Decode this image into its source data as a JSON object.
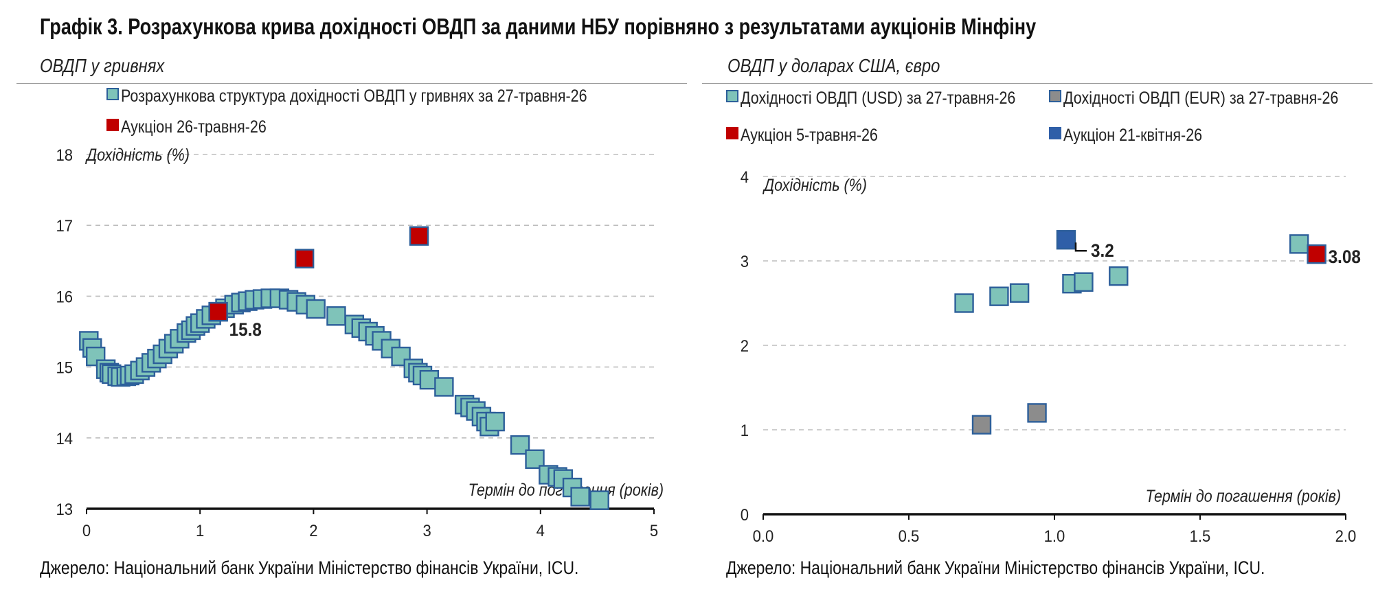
{
  "title": "Графік 3. Розрахункова крива дохідності ОВДП за даними НБУ порівняно з результатами аукціонів Мінфіну",
  "source_note": "Джерело: Національний банк України Міністерство фінансів України, ICU.",
  "colors": {
    "teal": "#7fc3b9",
    "red": "#c00000",
    "blue": "#2f5fa8",
    "gray": "#8c8c8c",
    "border": "#2d5f9a"
  },
  "chart_data": [
    {
      "type": "scatter",
      "subtitle": "ОВДП у гривнях",
      "ylabel": "Дохідність (%)",
      "xlabel": "Термін до погашення (років)",
      "xlim": [
        0,
        5
      ],
      "ylim": [
        13,
        18
      ],
      "xticks": [
        0,
        1,
        2,
        3,
        4,
        5
      ],
      "yticks": [
        13,
        14,
        15,
        16,
        17,
        18
      ],
      "grid": true,
      "legend_position": "top",
      "series": [
        {
          "name": "Розрахункова структура дохідності ОВДП у гривнях за 27-травня-26",
          "color": "teal",
          "points": [
            [
              0.02,
              15.37
            ],
            [
              0.05,
              15.27
            ],
            [
              0.08,
              15.15
            ],
            [
              0.17,
              14.97
            ],
            [
              0.2,
              14.92
            ],
            [
              0.22,
              14.9
            ],
            [
              0.27,
              14.87
            ],
            [
              0.3,
              14.86
            ],
            [
              0.35,
              14.87
            ],
            [
              0.38,
              14.88
            ],
            [
              0.42,
              14.9
            ],
            [
              0.47,
              14.95
            ],
            [
              0.52,
              15.0
            ],
            [
              0.57,
              15.06
            ],
            [
              0.62,
              15.12
            ],
            [
              0.67,
              15.18
            ],
            [
              0.72,
              15.26
            ],
            [
              0.77,
              15.33
            ],
            [
              0.82,
              15.4
            ],
            [
              0.88,
              15.48
            ],
            [
              0.92,
              15.52
            ],
            [
              0.96,
              15.58
            ],
            [
              1.0,
              15.62
            ],
            [
              1.05,
              15.68
            ],
            [
              1.1,
              15.73
            ],
            [
              1.16,
              15.78
            ],
            [
              1.22,
              15.83
            ],
            [
              1.3,
              15.88
            ],
            [
              1.36,
              15.91
            ],
            [
              1.42,
              15.93
            ],
            [
              1.48,
              15.95
            ],
            [
              1.55,
              15.96
            ],
            [
              1.62,
              15.97
            ],
            [
              1.7,
              15.97
            ],
            [
              1.78,
              15.95
            ],
            [
              1.85,
              15.92
            ],
            [
              1.93,
              15.88
            ],
            [
              2.02,
              15.82
            ],
            [
              2.2,
              15.72
            ],
            [
              2.36,
              15.6
            ],
            [
              2.42,
              15.55
            ],
            [
              2.48,
              15.5
            ],
            [
              2.54,
              15.44
            ],
            [
              2.6,
              15.37
            ],
            [
              2.68,
              15.26
            ],
            [
              2.77,
              15.15
            ],
            [
              2.88,
              14.98
            ],
            [
              2.92,
              14.92
            ],
            [
              2.96,
              14.88
            ],
            [
              3.02,
              14.82
            ],
            [
              3.15,
              14.72
            ],
            [
              3.33,
              14.47
            ],
            [
              3.38,
              14.43
            ],
            [
              3.43,
              14.38
            ],
            [
              3.48,
              14.3
            ],
            [
              3.52,
              14.23
            ],
            [
              3.55,
              14.16
            ],
            [
              3.6,
              14.23
            ],
            [
              3.82,
              13.9
            ],
            [
              3.95,
              13.7
            ],
            [
              4.07,
              13.48
            ],
            [
              4.15,
              13.45
            ],
            [
              4.2,
              13.42
            ],
            [
              4.28,
              13.3
            ],
            [
              4.35,
              13.17
            ],
            [
              4.52,
              13.12
            ]
          ]
        },
        {
          "name": "Аукціон 26-травня-26",
          "color": "red",
          "points": [
            [
              1.16,
              15.78
            ],
            [
              1.92,
              16.53
            ],
            [
              2.93,
              16.85
            ]
          ],
          "labels": [
            {
              "x": 1.16,
              "y": 15.78,
              "text": "15.8"
            }
          ]
        }
      ]
    },
    {
      "type": "scatter",
      "subtitle": "ОВДП у доларах США, євро",
      "ylabel": "Дохідність (%)",
      "xlabel": "Термін до погашення (років)",
      "xlim": [
        0,
        2
      ],
      "ylim": [
        0,
        4
      ],
      "xticks": [
        "0.0",
        "0.5",
        "1.0",
        "1.5",
        "2.0"
      ],
      "yticks": [
        0,
        1,
        2,
        3,
        4
      ],
      "grid": true,
      "legend_position": "top",
      "series": [
        {
          "name": "Дохідності ОВДП (USD) за 27-травня-26",
          "color": "teal",
          "points": [
            [
              0.69,
              2.5
            ],
            [
              0.81,
              2.58
            ],
            [
              0.88,
              2.62
            ],
            [
              1.06,
              2.73
            ],
            [
              1.1,
              2.75
            ],
            [
              1.22,
              2.82
            ],
            [
              1.84,
              3.2
            ]
          ]
        },
        {
          "name": "Дохідності ОВДП (EUR) за 27-травня-26",
          "color": "gray",
          "points": [
            [
              0.75,
              1.06
            ],
            [
              0.94,
              1.2
            ]
          ]
        },
        {
          "name": "Аукціон 5-травня-26",
          "color": "red",
          "points": [
            [
              1.9,
              3.08
            ]
          ],
          "labels": [
            {
              "x": 1.9,
              "y": 3.08,
              "text": "3.08"
            }
          ]
        },
        {
          "name": "Аукціон 21-квітня-26",
          "color": "blue",
          "points": [
            [
              1.04,
              3.25
            ]
          ],
          "labels": [
            {
              "x": 1.04,
              "y": 3.25,
              "text": "3.2"
            }
          ]
        }
      ]
    }
  ]
}
